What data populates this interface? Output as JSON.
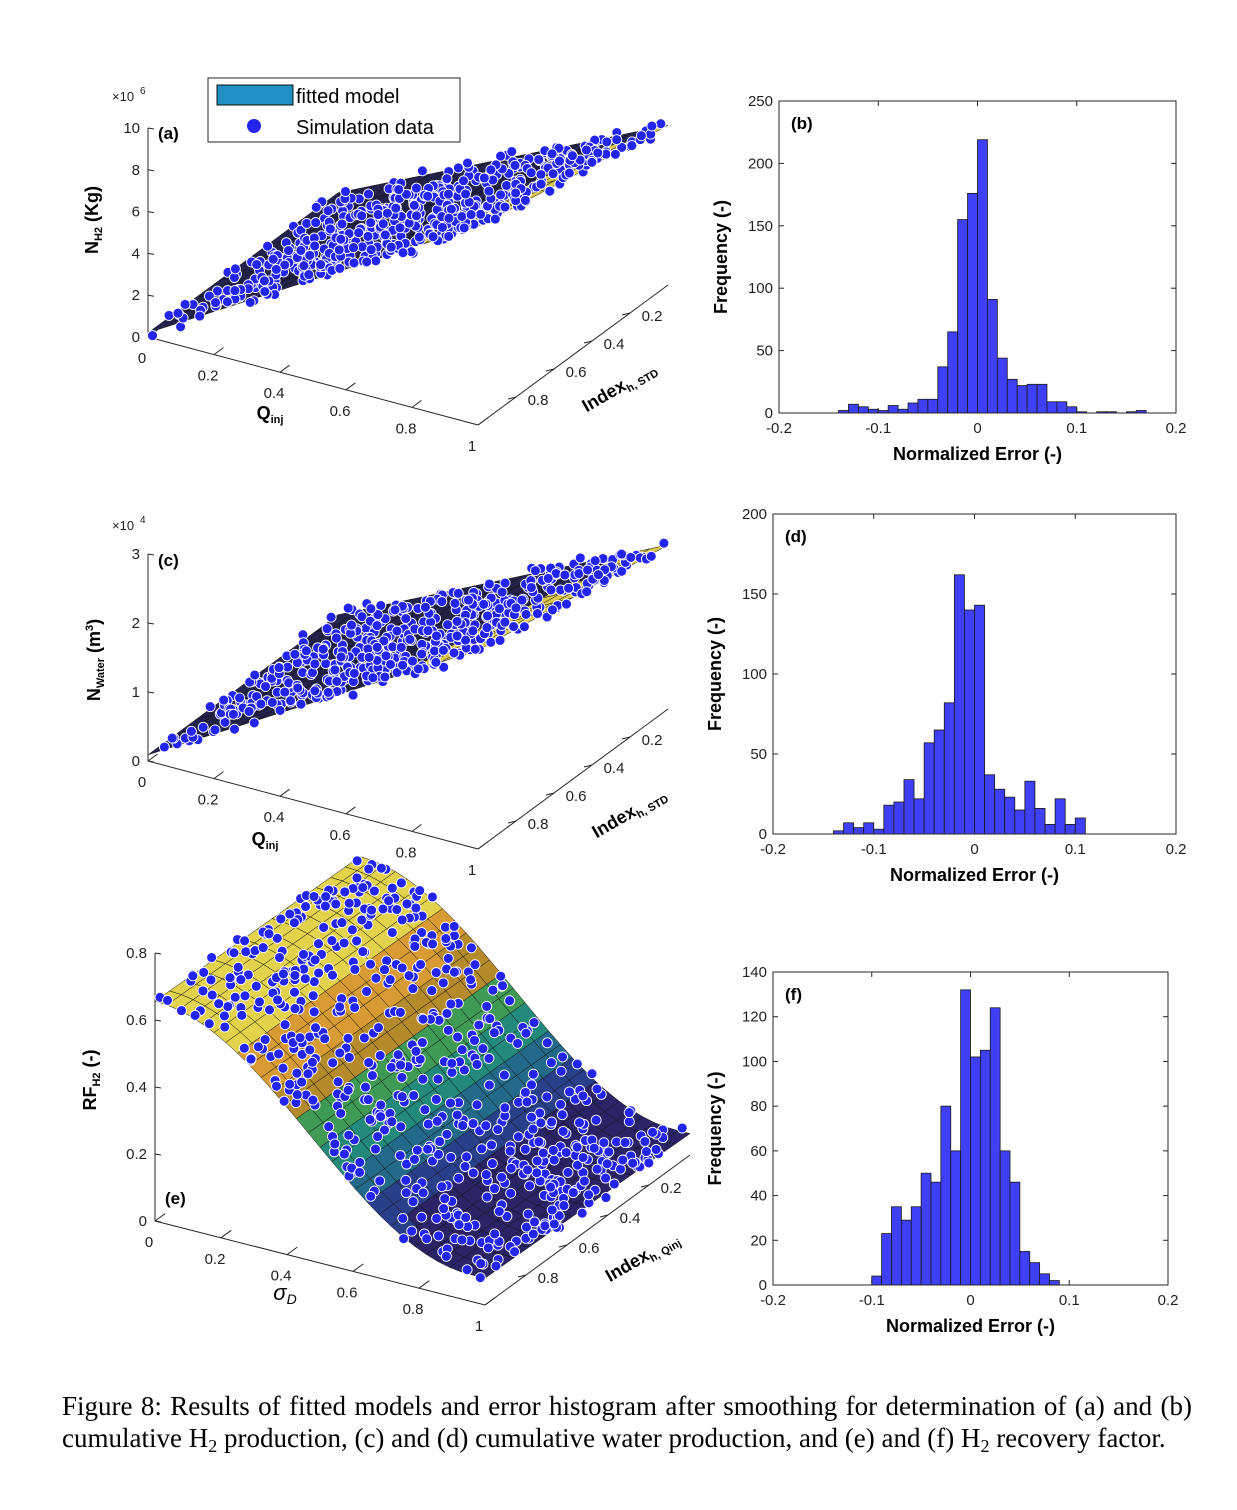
{
  "legend": {
    "fitted_label": "fitted model",
    "sim_label": "Simulation data"
  },
  "chart_data": [
    {
      "id": "a",
      "type": "surface3d",
      "panel_label": "(a)",
      "title": "",
      "z_label": "N_H2 (Kg)",
      "z_exponent": "×10^6",
      "x_label": "Q_inj",
      "y_label": "Index_h, STD",
      "z_ticks": [
        "0",
        "2",
        "4",
        "6",
        "8",
        "10"
      ],
      "zlim": [
        0,
        10
      ],
      "x_ticks": [
        "0",
        "0.2",
        "0.4",
        "0.6",
        "0.8",
        "1"
      ],
      "y_ticks": [
        "0.2",
        "0.4",
        "0.6",
        "0.8"
      ]
    },
    {
      "id": "b",
      "type": "bar",
      "panel_label": "(b)",
      "xlabel": "Normalized Error (-)",
      "ylabel": "Frequency (-)",
      "xlim": [
        -0.2,
        0.2
      ],
      "ylim": [
        0,
        250
      ],
      "x_ticks": [
        "-0.2",
        "-0.1",
        "0",
        "0.1",
        "0.2"
      ],
      "y_ticks": [
        "0",
        "50",
        "100",
        "150",
        "200",
        "250"
      ],
      "bin_start": -0.14,
      "bin_width": 0.01,
      "values": [
        2,
        7,
        5,
        3,
        2,
        6,
        3,
        8,
        11,
        11,
        37,
        65,
        155,
        176,
        219,
        91,
        44,
        27,
        22,
        23,
        23,
        9,
        9,
        5,
        1,
        0,
        1,
        1,
        0,
        1,
        2
      ]
    },
    {
      "id": "c",
      "type": "surface3d",
      "panel_label": "(c)",
      "title": "",
      "z_label": "N_Water (m3)",
      "z_exponent": "×10^4",
      "x_label": "Q_inj",
      "y_label": "Index_h, STD",
      "z_ticks": [
        "0",
        "1",
        "2",
        "3"
      ],
      "zlim": [
        0,
        3
      ],
      "x_ticks": [
        "0",
        "0.2",
        "0.4",
        "0.6",
        "0.8",
        "1"
      ],
      "y_ticks": [
        "0.2",
        "0.4",
        "0.6",
        "0.8"
      ]
    },
    {
      "id": "d",
      "type": "bar",
      "panel_label": "(d)",
      "xlabel": "Normalized Error (-)",
      "ylabel": "Frequency (-)",
      "xlim": [
        -0.2,
        0.2
      ],
      "ylim": [
        0,
        200
      ],
      "x_ticks": [
        "-0.2",
        "-0.1",
        "0",
        "0.1",
        "0.2"
      ],
      "y_ticks": [
        "0",
        "50",
        "100",
        "150",
        "200"
      ],
      "bin_start": -0.14,
      "bin_width": 0.01,
      "values": [
        2,
        7,
        4,
        7,
        3,
        18,
        20,
        34,
        22,
        57,
        65,
        82,
        162,
        140,
        143,
        37,
        28,
        23,
        15,
        33,
        16,
        6,
        22,
        6,
        10
      ]
    },
    {
      "id": "e",
      "type": "surface3d",
      "panel_label": "(e)",
      "title": "",
      "z_label": "RF_H2 (-)",
      "x_label": "σ_D",
      "y_label": "Index_h, Qinj",
      "z_ticks": [
        "0",
        "0.2",
        "0.4",
        "0.6",
        "0.8"
      ],
      "zlim": [
        0,
        0.8
      ],
      "x_ticks": [
        "0",
        "0.2",
        "0.4",
        "0.6",
        "0.8",
        "1"
      ],
      "y_ticks": [
        "0.2",
        "0.4",
        "0.6",
        "0.8"
      ]
    },
    {
      "id": "f",
      "type": "bar",
      "panel_label": "(f)",
      "xlabel": "Normalized Error (-)",
      "ylabel": "Frequency (-)",
      "xlim": [
        -0.2,
        0.2
      ],
      "ylim": [
        0,
        140
      ],
      "x_ticks": [
        "-0.2",
        "-0.1",
        "0",
        "0.1",
        "0.2"
      ],
      "y_ticks": [
        "0",
        "20",
        "40",
        "60",
        "80",
        "100",
        "120",
        "140"
      ],
      "bin_start": -0.1,
      "bin_width": 0.01,
      "values": [
        4,
        23,
        35,
        29,
        35,
        50,
        46,
        80,
        60,
        132,
        102,
        105,
        124,
        60,
        46,
        15,
        10,
        5,
        2
      ]
    }
  ],
  "caption": {
    "p1": "Figure 8: Results of fitted models and error histogram after smoothing for determination of (a) and (b) cumulative H",
    "s1": "2",
    "p2": " production, (c) and (d) cumulative water production, and (e) and (f) H",
    "s2": "2",
    "p3": " recovery factor."
  }
}
